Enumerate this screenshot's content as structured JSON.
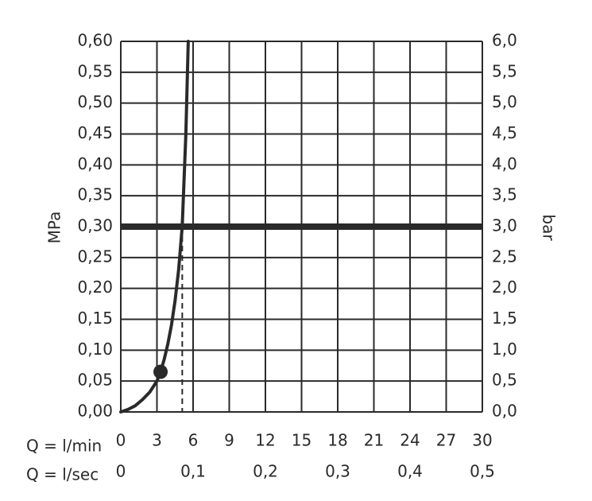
{
  "chart_data": {
    "type": "line",
    "title": "",
    "y_left": {
      "label": "MPa",
      "ticks": [
        "0,00",
        "0,05",
        "0,10",
        "0,15",
        "0,20",
        "0,25",
        "0,30",
        "0,35",
        "0,40",
        "0,45",
        "0,50",
        "0,55",
        "0,60"
      ],
      "range": [
        0,
        0.6
      ]
    },
    "y_right": {
      "label": "bar",
      "ticks": [
        "0,0",
        "0,5",
        "1,0",
        "1,5",
        "2,0",
        "2,5",
        "3,0",
        "3,5",
        "4,0",
        "4,5",
        "5,0",
        "5,5",
        "6,0"
      ],
      "range": [
        0,
        6
      ]
    },
    "x_primary": {
      "label": "Q = l/min",
      "ticks": [
        "0",
        "3",
        "6",
        "9",
        "12",
        "15",
        "18",
        "21",
        "24",
        "27",
        "30"
      ],
      "range": [
        0,
        30
      ]
    },
    "x_secondary": {
      "label": "Q = l/sec",
      "ticks": [
        "0",
        "0,1",
        "0,2",
        "0,3",
        "0,4",
        "0,5"
      ],
      "values": [
        0,
        6,
        12,
        18,
        24,
        30
      ]
    },
    "grid": true,
    "series": [
      {
        "x": [
          0,
          0.6,
          1.2,
          1.8,
          2.4,
          3.0,
          3.3,
          3.6,
          3.9,
          4.2,
          4.5,
          4.8,
          5.1,
          5.4,
          5.6
        ],
        "y": [
          0,
          0.004,
          0.01,
          0.02,
          0.032,
          0.05,
          0.065,
          0.085,
          0.11,
          0.14,
          0.18,
          0.23,
          0.3,
          0.45,
          0.6
        ],
        "color": "#2a2a2a"
      }
    ],
    "marker": {
      "x": 3.3,
      "y": 0.065
    },
    "reference_line_y": 0.3,
    "dashed_drop_x": 5.1,
    "colors": {
      "ink": "#2a2a2a",
      "background": "#ffffff"
    }
  }
}
